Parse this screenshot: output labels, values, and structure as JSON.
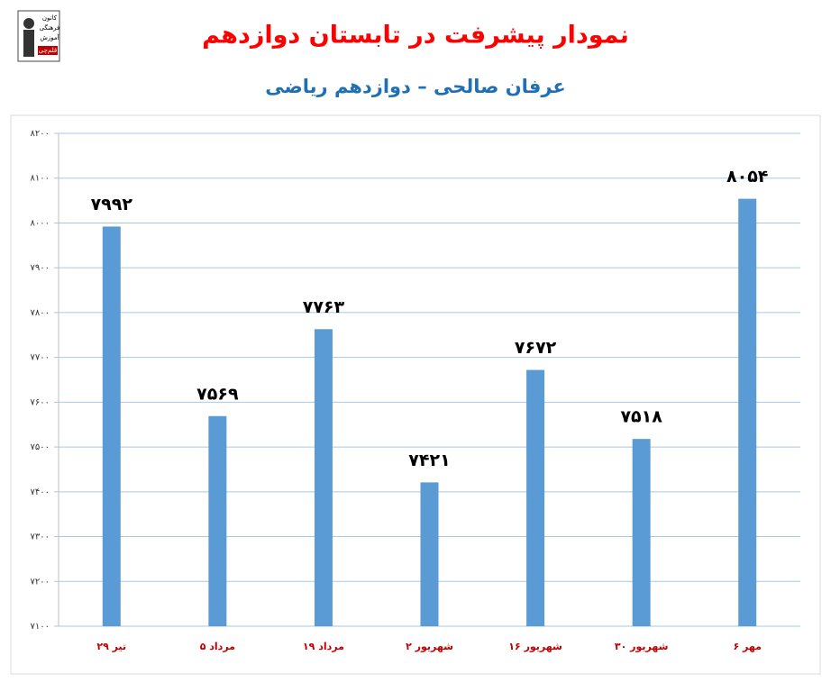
{
  "logo": [
    "کانون",
    "فرهنگی",
    "آموزش",
    "قلم‌چی"
  ],
  "chart_data": {
    "type": "bar",
    "title": "نمودار پیشرفت در تابستان دوازدهم",
    "subtitle": "عرفان صالحی – دوازدهم ریاضی",
    "categories": [
      "۲۹ تیر",
      "۵ مرداد",
      "۱۹ مرداد",
      "۲ شهریور",
      "۱۶ شهریور",
      "۳۰ شهریور",
      "۶ مهر"
    ],
    "values": [
      7992,
      7569,
      7763,
      7421,
      7672,
      7518,
      8054
    ],
    "value_labels": [
      "۷۹۹۲",
      "۷۵۶۹",
      "۷۷۶۳",
      "۷۴۲۱",
      "۷۶۷۲",
      "۷۵۱۸",
      "۸۰۵۴"
    ],
    "color": "#5b9bd5",
    "ylim": [
      7100,
      8200
    ],
    "yticks": [
      {
        "value": 7100,
        "label": "۷۱۰۰"
      },
      {
        "value": 7200,
        "label": "۷۲۰۰"
      },
      {
        "value": 7300,
        "label": "۷۳۰۰"
      },
      {
        "value": 7400,
        "label": "۷۴۰۰"
      },
      {
        "value": 7500,
        "label": "۷۵۰۰"
      },
      {
        "value": 7600,
        "label": "۷۶۰۰"
      },
      {
        "value": 7700,
        "label": "۷۷۰۰"
      },
      {
        "value": 7800,
        "label": "۷۸۰۰"
      },
      {
        "value": 7900,
        "label": "۷۹۰۰"
      },
      {
        "value": 8000,
        "label": "۸۰۰۰"
      },
      {
        "value": 8100,
        "label": "۸۱۰۰"
      },
      {
        "value": 8200,
        "label": "۸۲۰۰"
      }
    ],
    "grid": true
  }
}
